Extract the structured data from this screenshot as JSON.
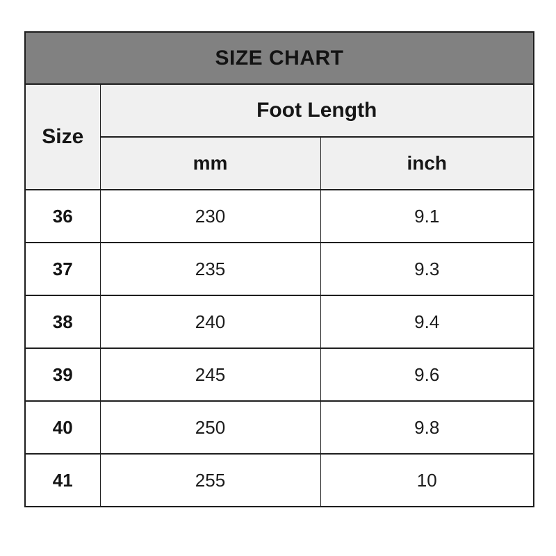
{
  "chart_data": {
    "type": "table",
    "title": "SIZE CHART",
    "column_group_header": "Foot Length",
    "columns": [
      "Size",
      "mm",
      "inch"
    ],
    "rows": [
      [
        "36",
        "230",
        "9.1"
      ],
      [
        "37",
        "235",
        "9.3"
      ],
      [
        "38",
        "240",
        "9.4"
      ],
      [
        "39",
        "245",
        "9.6"
      ],
      [
        "40",
        "250",
        "9.8"
      ],
      [
        "41",
        "255",
        "10"
      ]
    ]
  },
  "colors": {
    "title_band_bg": "#818181",
    "header_cell_bg": "#f0f0f0",
    "data_row_bg": "#ffffff",
    "border": "#1e1e1e",
    "text": "#1a1a1a",
    "page_bg": "#ffffff"
  }
}
